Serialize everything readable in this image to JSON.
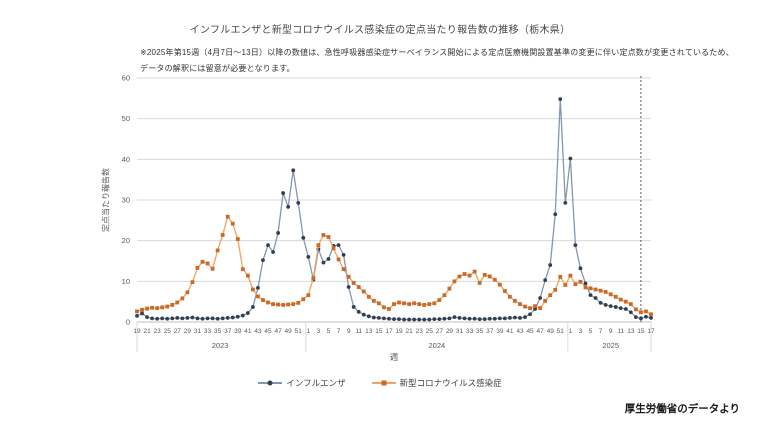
{
  "title": "インフルエンザと新型コロナウイルス感染症の定点当たり報告数の推移（栃木県）",
  "note_line1": "※2025年第15週（4月7日～13日）以降の数値は、急性呼吸器感染症サーベイランス開始による定点医療機関設置基準の変更に伴い定点数が変更されているため、",
  "note_line2": "データの解釈には留意が必要となります。",
  "source": "厚生労働省のデータより",
  "legend": {
    "influenza": "インフルエンザ",
    "covid": "新型コロナウイルス感染症"
  },
  "chart_data": {
    "type": "line",
    "title": "インフルエンザと新型コロナウイルス感染症の定点当たり報告数の推移（栃木県）",
    "xlabel": "週",
    "ylabel": "定点当たり報告数",
    "ylim": [
      0,
      60
    ],
    "yticks": [
      0,
      10,
      20,
      30,
      40,
      50,
      60
    ],
    "grid": true,
    "legend_position": "bottom",
    "x_tick_step": 2,
    "year_groups": [
      {
        "label": "2023",
        "start_week": 19,
        "end_week": 52
      },
      {
        "label": "2024",
        "start_week": 1,
        "end_week": 52
      },
      {
        "label": "2025",
        "start_week": 1,
        "end_week": 17
      }
    ],
    "dashed_line": {
      "year": "2025",
      "week": 15,
      "color": "#595959"
    },
    "series": [
      {
        "name": "インフルエンザ",
        "data_name": "influenza-series",
        "marker": "circle",
        "line_color": "#8496b0",
        "marker_color": "#333f50",
        "values": [
          1.5,
          2.1,
          1.2,
          0.9,
          0.8,
          0.9,
          0.8,
          0.9,
          1.0,
          0.9,
          1.0,
          1.1,
          0.9,
          0.8,
          0.9,
          0.9,
          0.8,
          0.9,
          1.0,
          1.1,
          1.3,
          1.6,
          2.2,
          3.7,
          8.4,
          15.2,
          18.9,
          17.2,
          21.9,
          31.7,
          28.3,
          37.3,
          29.3,
          20.7,
          16.0,
          10.4,
          17.9,
          14.6,
          15.5,
          18.7,
          18.9,
          16.5,
          8.6,
          3.7,
          2.5,
          1.8,
          1.4,
          1.1,
          1.0,
          0.9,
          0.8,
          0.7,
          0.7,
          0.6,
          0.6,
          0.6,
          0.6,
          0.6,
          0.6,
          0.7,
          0.7,
          0.8,
          0.9,
          1.2,
          1.0,
          0.9,
          0.8,
          0.8,
          0.7,
          0.7,
          0.8,
          0.8,
          0.9,
          0.9,
          1.0,
          1.1,
          1.0,
          1.2,
          1.9,
          3.2,
          5.9,
          10.3,
          14.0,
          26.5,
          54.8,
          29.3,
          40.2,
          18.9,
          13.2,
          9.5,
          6.6,
          5.9,
          4.7,
          4.2,
          3.9,
          3.7,
          3.4,
          3.2,
          2.4,
          1.2,
          0.9,
          1.3,
          1.0
        ]
      },
      {
        "name": "新型コロナウイルス感染症",
        "data_name": "covid-series",
        "marker": "square",
        "line_color": "#f2a25c",
        "marker_color": "#c96a2a",
        "values": [
          2.6,
          3.0,
          3.3,
          3.5,
          3.4,
          3.6,
          3.8,
          4.2,
          4.8,
          5.8,
          7.3,
          9.8,
          13.3,
          14.8,
          14.4,
          13.1,
          17.6,
          21.4,
          25.9,
          24.2,
          20.4,
          13.0,
          11.4,
          8.0,
          6.3,
          5.4,
          4.8,
          4.4,
          4.3,
          4.2,
          4.3,
          4.4,
          4.7,
          5.6,
          6.6,
          10.8,
          18.9,
          21.4,
          20.9,
          18.1,
          15.4,
          13.0,
          11.1,
          9.6,
          8.6,
          7.5,
          6.2,
          5.2,
          4.6,
          3.6,
          3.2,
          4.4,
          4.8,
          4.6,
          4.4,
          4.6,
          4.4,
          4.2,
          4.4,
          4.6,
          5.4,
          6.6,
          8.2,
          10.0,
          11.2,
          11.8,
          11.4,
          12.4,
          9.6,
          11.6,
          11.2,
          10.4,
          9.2,
          7.6,
          6.2,
          5.2,
          4.4,
          3.8,
          3.4,
          3.9,
          3.4,
          5.2,
          6.6,
          7.9,
          11.1,
          9.1,
          11.4,
          9.3,
          9.9,
          8.5,
          8.3,
          8.0,
          7.7,
          7.4,
          6.8,
          6.2,
          5.5,
          5.0,
          4.4,
          3.1,
          2.4,
          2.6,
          1.9
        ]
      }
    ],
    "colors": {
      "gridline": "#d9d9d9",
      "axis": "#bfbfbf",
      "tick_text": "#595959"
    }
  }
}
